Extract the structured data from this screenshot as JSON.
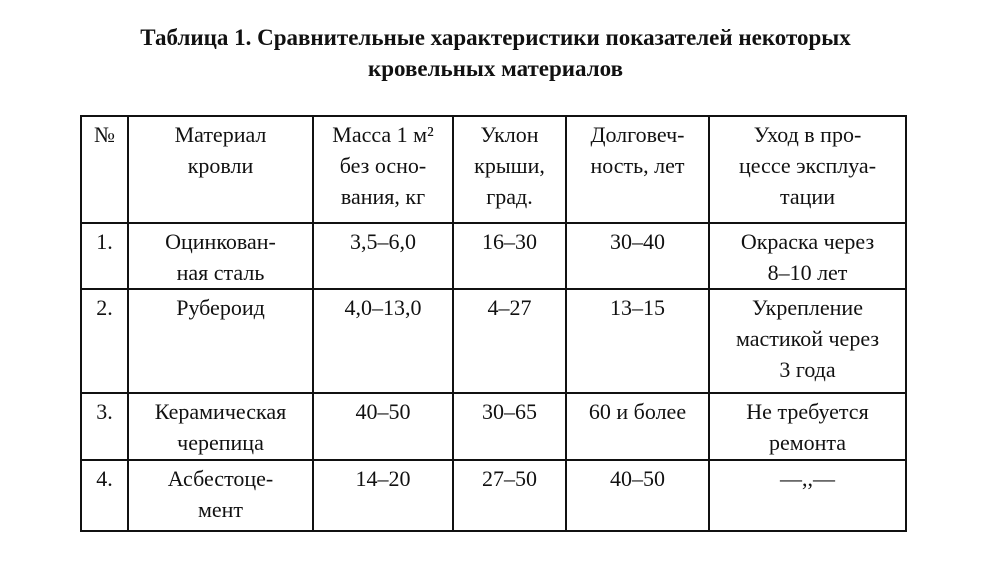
{
  "title": {
    "line1": "Таблица 1. Сравнительные характеристики показателей некоторых",
    "line2": "кровельных материалов"
  },
  "headers": [
    "№",
    "Материал\nкровли",
    "Масса 1 м²\nбез осно-\nвания, кг",
    "Уклон\nкрыши,\nград.",
    "Долговеч-\nность, лет",
    "Уход в про-\nцессе эксплуа-\nтации"
  ],
  "rows": [
    [
      "1.",
      "Оцинкован-\nная сталь",
      "3,5–6,0",
      "16–30",
      "30–40",
      "Окраска через\n8–10 лет"
    ],
    [
      "2.",
      "Рубероид",
      "4,0–13,0",
      "4–27",
      "13–15",
      "Укрепление\nмастикой через\n3 года"
    ],
    [
      "3.",
      "Керамическая\nчерепица",
      "40–50",
      "30–65",
      "60 и более",
      "Не требуется\nремонта"
    ],
    [
      "4.",
      "Асбестоце-\nмент",
      "14–20",
      "27–50",
      "40–50",
      "—,,—"
    ]
  ]
}
